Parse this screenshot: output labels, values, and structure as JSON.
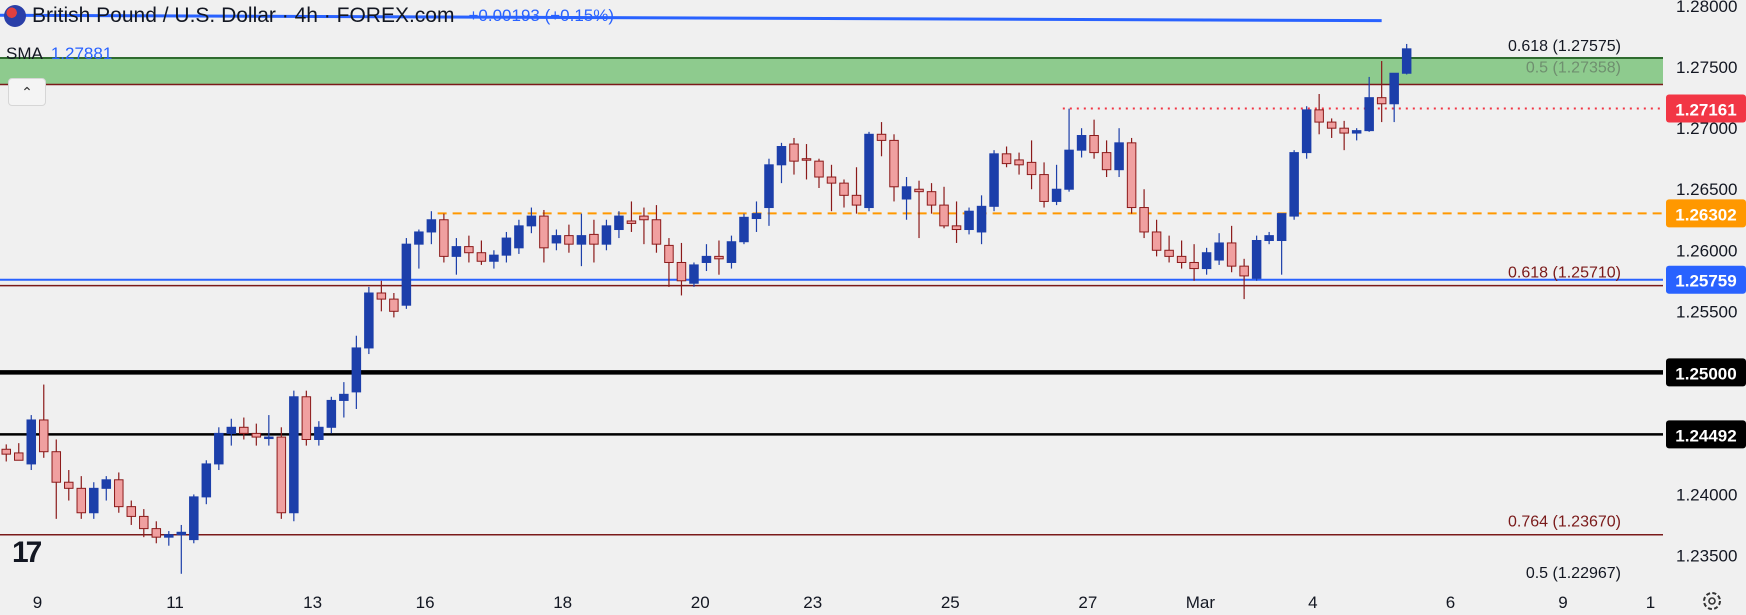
{
  "header": {
    "title": "British Pound / U.S. Dollar · 4h · FOREX.com",
    "change": "+0.00193 (+0.15%)",
    "sma_label": "SMA",
    "sma_value": "1.27881"
  },
  "colors": {
    "bull": "#1c3faa",
    "bear_fill": "#f0a0a0",
    "bear_stroke": "#8b1a1a",
    "zone": "#7cc47c",
    "sma": "#2962ff",
    "fib": "#7a1a1a"
  },
  "chart_data": {
    "type": "candlestick",
    "ylim": [
      1.2325,
      1.2805
    ],
    "y_ticks": [
      "1.28000",
      "1.27500",
      "1.27000",
      "1.26500",
      "1.26000",
      "1.25500",
      "1.25000",
      "1.24500",
      "1.24000",
      "1.23500"
    ],
    "x_ticks": [
      {
        "label": "9",
        "x": 2.5
      },
      {
        "label": "11",
        "x": 13.5
      },
      {
        "label": "13",
        "x": 24.5
      },
      {
        "label": "16",
        "x": 33.5
      },
      {
        "label": "18",
        "x": 44.5
      },
      {
        "label": "20",
        "x": 55.5
      },
      {
        "label": "23",
        "x": 64.5
      },
      {
        "label": "25",
        "x": 75.5
      },
      {
        "label": "27",
        "x": 86.5
      },
      {
        "label": "Mar",
        "x": 95.5
      },
      {
        "label": "4",
        "x": 104.5
      },
      {
        "label": "6",
        "x": 115.5
      },
      {
        "label": "9",
        "x": 124.5
      },
      {
        "label": "1",
        "x": 131.5
      }
    ],
    "x_range": [
      -0.5,
      132.5
    ],
    "candles": [
      [
        1.2437,
        1.2441,
        1.2427,
        1.2433
      ],
      [
        1.2434,
        1.2442,
        1.2428,
        1.2428
      ],
      [
        1.2425,
        1.2465,
        1.242,
        1.2461
      ],
      [
        1.2461,
        1.249,
        1.243,
        1.2435
      ],
      [
        1.2435,
        1.2445,
        1.238,
        1.241
      ],
      [
        1.241,
        1.242,
        1.2395,
        1.2405
      ],
      [
        1.2405,
        1.2415,
        1.238,
        1.2385
      ],
      [
        1.2385,
        1.241,
        1.238,
        1.2405
      ],
      [
        1.2405,
        1.2415,
        1.2395,
        1.2412
      ],
      [
        1.2412,
        1.2418,
        1.2385,
        1.239
      ],
      [
        1.239,
        1.2395,
        1.2375,
        1.2382
      ],
      [
        1.2382,
        1.2388,
        1.2365,
        1.2372
      ],
      [
        1.2372,
        1.2378,
        1.236,
        1.2365
      ],
      [
        1.2365,
        1.237,
        1.2358,
        1.2367
      ],
      [
        1.2367,
        1.2375,
        1.2335,
        1.2369
      ],
      [
        1.2363,
        1.24,
        1.236,
        1.2398
      ],
      [
        1.2398,
        1.2428,
        1.2392,
        1.2425
      ],
      [
        1.2425,
        1.2455,
        1.242,
        1.245
      ],
      [
        1.245,
        1.2462,
        1.244,
        1.2455
      ],
      [
        1.2455,
        1.2463,
        1.2445,
        1.245
      ],
      [
        1.245,
        1.2458,
        1.244,
        1.2447
      ],
      [
        1.2447,
        1.2465,
        1.244,
        1.2447
      ],
      [
        1.2447,
        1.2455,
        1.238,
        1.2385
      ],
      [
        1.2385,
        1.2485,
        1.2378,
        1.248
      ],
      [
        1.248,
        1.2485,
        1.244,
        1.2445
      ],
      [
        1.2445,
        1.246,
        1.244,
        1.2455
      ],
      [
        1.2455,
        1.248,
        1.245,
        1.2477
      ],
      [
        1.2477,
        1.2492,
        1.2463,
        1.2482
      ],
      [
        1.2484,
        1.253,
        1.247,
        1.252
      ],
      [
        1.252,
        1.257,
        1.2515,
        1.2565
      ],
      [
        1.2565,
        1.2575,
        1.255,
        1.256
      ],
      [
        1.256,
        1.2565,
        1.2545,
        1.255
      ],
      [
        1.2555,
        1.261,
        1.2552,
        1.2605
      ],
      [
        1.2605,
        1.2617,
        1.2585,
        1.2615
      ],
      [
        1.2615,
        1.2632,
        1.2605,
        1.2625
      ],
      [
        1.2625,
        1.263,
        1.259,
        1.2595
      ],
      [
        1.2595,
        1.261,
        1.258,
        1.2603
      ],
      [
        1.2603,
        1.2612,
        1.259,
        1.2598
      ],
      [
        1.2598,
        1.2608,
        1.2588,
        1.2591
      ],
      [
        1.2591,
        1.26,
        1.2585,
        1.2596
      ],
      [
        1.2596,
        1.2615,
        1.259,
        1.261
      ],
      [
        1.2602,
        1.2625,
        1.2597,
        1.262
      ],
      [
        1.262,
        1.2635,
        1.2614,
        1.2628
      ],
      [
        1.2628,
        1.2633,
        1.259,
        1.2602
      ],
      [
        1.2606,
        1.2617,
        1.26,
        1.2612
      ],
      [
        1.2612,
        1.2621,
        1.2598,
        1.2605
      ],
      [
        1.2605,
        1.263,
        1.2587,
        1.2612
      ],
      [
        1.2613,
        1.2625,
        1.259,
        1.2605
      ],
      [
        1.2605,
        1.2625,
        1.26,
        1.262
      ],
      [
        1.2617,
        1.2632,
        1.261,
        1.2628
      ],
      [
        1.2624,
        1.264,
        1.2615,
        1.2622
      ],
      [
        1.2628,
        1.2635,
        1.2605,
        1.2625
      ],
      [
        1.2625,
        1.2637,
        1.2598,
        1.2605
      ],
      [
        1.2604,
        1.261,
        1.257,
        1.259
      ],
      [
        1.259,
        1.2606,
        1.2563,
        1.2575
      ],
      [
        1.2573,
        1.259,
        1.257,
        1.2588
      ],
      [
        1.259,
        1.2605,
        1.2583,
        1.2595
      ],
      [
        1.2595,
        1.2608,
        1.258,
        1.2593
      ],
      [
        1.259,
        1.2612,
        1.2585,
        1.2607
      ],
      [
        1.2607,
        1.263,
        1.2605,
        1.2627
      ],
      [
        1.2626,
        1.264,
        1.2615,
        1.263
      ],
      [
        1.2635,
        1.2675,
        1.262,
        1.267
      ],
      [
        1.267,
        1.2688,
        1.2655,
        1.2685
      ],
      [
        1.2687,
        1.2692,
        1.2662,
        1.2673
      ],
      [
        1.2675,
        1.2687,
        1.2658,
        1.2674
      ],
      [
        1.2673,
        1.2675,
        1.2651,
        1.266
      ],
      [
        1.266,
        1.267,
        1.2632,
        1.2655
      ],
      [
        1.2655,
        1.2658,
        1.2635,
        1.2645
      ],
      [
        1.2645,
        1.2668,
        1.263,
        1.2637
      ],
      [
        1.2635,
        1.2697,
        1.2632,
        1.2695
      ],
      [
        1.2695,
        1.2705,
        1.2677,
        1.269
      ],
      [
        1.269,
        1.2695,
        1.264,
        1.2652
      ],
      [
        1.2642,
        1.266,
        1.2625,
        1.2652
      ],
      [
        1.265,
        1.2657,
        1.261,
        1.2648
      ],
      [
        1.2648,
        1.2655,
        1.263,
        1.2637
      ],
      [
        1.2637,
        1.2652,
        1.2618,
        1.262
      ],
      [
        1.262,
        1.264,
        1.2606,
        1.2617
      ],
      [
        1.2617,
        1.2635,
        1.2613,
        1.2632
      ],
      [
        1.2615,
        1.2645,
        1.2605,
        1.2636
      ],
      [
        1.2636,
        1.2682,
        1.2632,
        1.2679
      ],
      [
        1.2679,
        1.2685,
        1.2668,
        1.2671
      ],
      [
        1.2674,
        1.268,
        1.2662,
        1.267
      ],
      [
        1.2672,
        1.269,
        1.265,
        1.2662
      ],
      [
        1.2662,
        1.2672,
        1.2635,
        1.264
      ],
      [
        1.264,
        1.267,
        1.2637,
        1.265
      ],
      [
        1.265,
        1.2716,
        1.2648,
        1.2682
      ],
      [
        1.2682,
        1.27,
        1.2676,
        1.2694
      ],
      [
        1.2694,
        1.2707,
        1.2675,
        1.268
      ],
      [
        1.268,
        1.269,
        1.266,
        1.2666
      ],
      [
        1.2666,
        1.27,
        1.266,
        1.2688
      ],
      [
        1.2688,
        1.2692,
        1.263,
        1.2635
      ],
      [
        1.2635,
        1.265,
        1.261,
        1.2615
      ],
      [
        1.2615,
        1.2625,
        1.2595,
        1.26
      ],
      [
        1.26,
        1.2612,
        1.259,
        1.2595
      ],
      [
        1.2595,
        1.2608,
        1.2585,
        1.259
      ],
      [
        1.259,
        1.2605,
        1.2575,
        1.2585
      ],
      [
        1.2585,
        1.2602,
        1.258,
        1.2598
      ],
      [
        1.2592,
        1.2614,
        1.2588,
        1.2606
      ],
      [
        1.2606,
        1.262,
        1.2582,
        1.2587
      ],
      [
        1.2587,
        1.2593,
        1.256,
        1.2579
      ],
      [
        1.2577,
        1.2612,
        1.2575,
        1.2608
      ],
      [
        1.2608,
        1.2615,
        1.2605,
        1.2612
      ],
      [
        1.2608,
        1.263,
        1.258,
        1.263
      ],
      [
        1.2628,
        1.2682,
        1.2625,
        1.268
      ],
      [
        1.268,
        1.2718,
        1.2675,
        1.2715
      ],
      [
        1.2715,
        1.2728,
        1.2695,
        1.2705
      ],
      [
        1.2705,
        1.2708,
        1.2692,
        1.27
      ],
      [
        1.27,
        1.2706,
        1.2682,
        1.2696
      ],
      [
        1.2696,
        1.27,
        1.269,
        1.2698
      ],
      [
        1.2698,
        1.2742,
        1.2697,
        1.2725
      ],
      [
        1.2725,
        1.2755,
        1.2705,
        1.272
      ],
      [
        1.272,
        1.2745,
        1.2705,
        1.2745
      ],
      [
        1.2745,
        1.2769,
        1.2744,
        1.2765
      ]
    ],
    "sma": {
      "label": "SMA",
      "value": "1.27881",
      "x0": -0.5,
      "x1": 110,
      "y0": 1.27925,
      "y1": 1.27881
    },
    "zone": {
      "y0": 1.27358,
      "y1": 1.27575
    },
    "levels": [
      {
        "price": 1.27575,
        "label": "0.618 (1.27575)",
        "kind": "fib-dark",
        "text_color": "#131722"
      },
      {
        "price": 1.27358,
        "label": "0.5 (1.27358)",
        "kind": "fib",
        "text_color": "#6f8f6f"
      },
      {
        "price": 1.2571,
        "label": "0.618 (1.25710)",
        "kind": "fib",
        "text_color": "#7a1a1a"
      },
      {
        "price": 1.2367,
        "label": "0.764 (1.23670)",
        "kind": "fib",
        "text_color": "#7a1a1a"
      },
      {
        "price": 1.22967,
        "label": "0.5 (1.22967)",
        "kind": "offscreen",
        "text_color": "#131722"
      },
      {
        "price": 1.25759,
        "label": "",
        "kind": "blue"
      },
      {
        "price": 1.25,
        "label": "",
        "kind": "black-thick"
      },
      {
        "price": 1.24492,
        "label": "",
        "kind": "black"
      }
    ],
    "dotted": {
      "price": 1.27161,
      "x0": 84.5
    },
    "dashed": {
      "price": 1.26302,
      "x0": 34.5
    },
    "price_labels": [
      {
        "text": "1.27161",
        "price": 1.27161,
        "bg": "#f23645"
      },
      {
        "text": "1.26302",
        "price": 1.26302,
        "bg": "#ff9800"
      },
      {
        "text": "1.25759",
        "price": 1.25759,
        "bg": "#2962ff"
      },
      {
        "text": "1.25000",
        "price": 1.25,
        "bg": "#000000"
      },
      {
        "text": "1.24492",
        "price": 1.24492,
        "bg": "#000000"
      }
    ]
  },
  "ui": {
    "collapse_icon": "chevron-up-icon",
    "logo": "17",
    "settings_icon": "gear-icon"
  }
}
